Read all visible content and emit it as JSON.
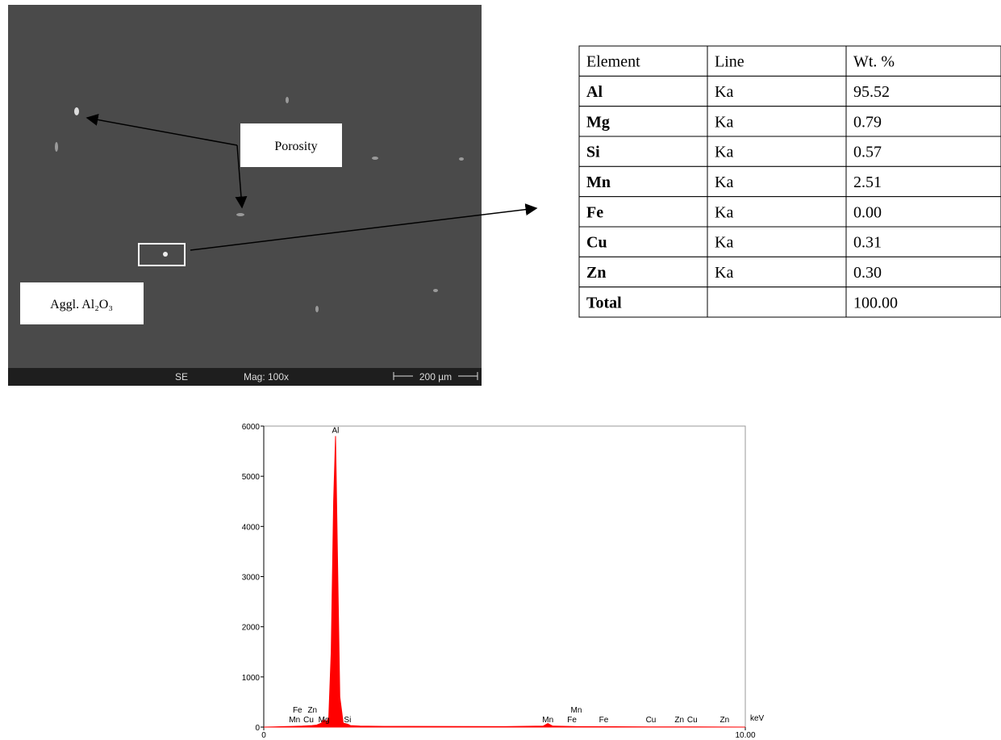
{
  "figure": {
    "porosity_label": "Porosity",
    "agglomerate_label": "Aggl. Al₂O₃",
    "info_bar": {
      "detector": "SE",
      "magnification": "Mag: 100x",
      "scale": "200 µm"
    }
  },
  "table": {
    "header": [
      "Element",
      "Line",
      "Wt. %"
    ],
    "rows": [
      [
        "Al",
        "Ka",
        "95.52"
      ],
      [
        "Mg",
        "Ka",
        "0.79"
      ],
      [
        "Si",
        "Ka",
        "0.57"
      ],
      [
        "Mn",
        "Ka",
        "2.51"
      ],
      [
        "Fe",
        "Ka",
        "0.00"
      ],
      [
        "Cu",
        "Ka",
        "0.31"
      ],
      [
        "Zn",
        "Ka",
        "0.30"
      ],
      [
        "Total",
        null,
        "100.00"
      ]
    ]
  },
  "chart_data": {
    "type": "area",
    "x_unit": "keV",
    "color": "#ff0000",
    "x": [
      0,
      0.2,
      0.4,
      0.6,
      0.8,
      1.0,
      1.1,
      1.2,
      1.25,
      1.3,
      1.35,
      1.4,
      1.45,
      1.49,
      1.53,
      1.58,
      1.65,
      1.74,
      1.8,
      2.0,
      2.5,
      3,
      4,
      5,
      5.8,
      5.9,
      6.0,
      6.5,
      7,
      8,
      9,
      10
    ],
    "values": [
      0,
      5,
      10,
      15,
      20,
      30,
      40,
      80,
      150,
      100,
      200,
      1500,
      4500,
      5800,
      3500,
      600,
      80,
      60,
      30,
      20,
      15,
      15,
      12,
      10,
      20,
      70,
      20,
      10,
      8,
      5,
      3,
      0
    ],
    "xlim": [
      0,
      10
    ],
    "xticks": [
      0,
      {
        "value": 10,
        "label": "10.00"
      }
    ],
    "ylim": [
      0,
      6000
    ],
    "yticks": [
      0,
      1000,
      2000,
      3000,
      4000,
      5000,
      6000
    ],
    "annotations": [
      {
        "text": "Mn",
        "x": 0.64
      },
      {
        "text": "Fe",
        "x": 0.7
      },
      {
        "text": "Cu",
        "x": 0.93
      },
      {
        "text": "Zn",
        "x": 1.01
      },
      {
        "text": "Mg",
        "x": 1.25
      },
      {
        "text": "Al",
        "x": 1.49
      },
      {
        "text": "Si",
        "x": 1.74
      },
      {
        "text": "Mn",
        "x": 5.9
      },
      {
        "text": "Fe",
        "x": 6.4
      },
      {
        "text": "Mn",
        "x": 6.49
      },
      {
        "text": "Fe",
        "x": 7.06
      },
      {
        "text": "Cu",
        "x": 8.04
      },
      {
        "text": "Zn",
        "x": 8.63
      },
      {
        "text": "Cu",
        "x": 8.9
      },
      {
        "text": "Zn",
        "x": 9.57
      }
    ]
  }
}
